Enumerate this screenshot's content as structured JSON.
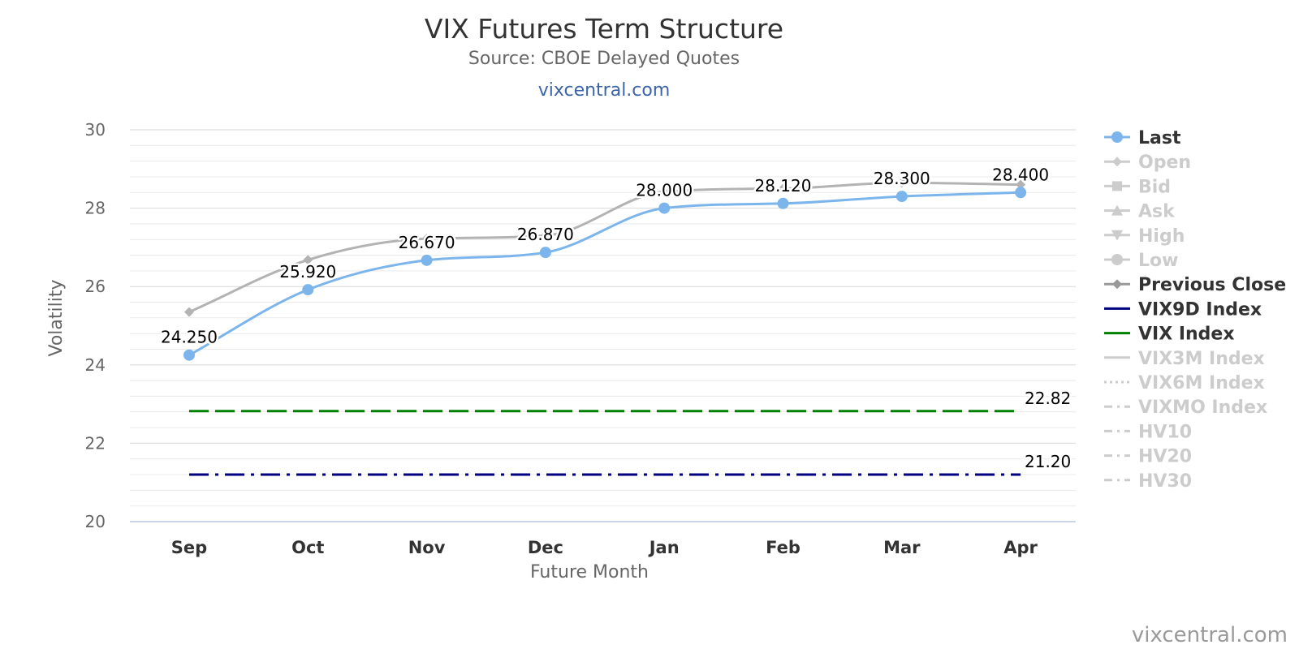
{
  "chart_data": {
    "type": "line",
    "title": "VIX Futures Term Structure",
    "subtitle": "Source: CBOE Delayed Quotes",
    "source_link": "vixcentral.com",
    "credit": "vixcentral.com",
    "xlabel": "Future Month",
    "ylabel": "Volatility",
    "categories": [
      "Sep",
      "Oct",
      "Nov",
      "Dec",
      "Jan",
      "Feb",
      "Mar",
      "Apr"
    ],
    "ylim": [
      20,
      30
    ],
    "yticks": [
      "20",
      "22",
      "24",
      "26",
      "28",
      "30"
    ],
    "grid": true,
    "legend_position": "right",
    "series": [
      {
        "name": "Last",
        "color": "#7cb5ec",
        "values": [
          24.25,
          25.92,
          26.67,
          26.87,
          28.0,
          28.12,
          28.3,
          28.4
        ],
        "data_labels": [
          "24.250",
          "25.920",
          "26.670",
          "26.870",
          "28.000",
          "28.120",
          "28.300",
          "28.400"
        ]
      },
      {
        "name": "Previous Close",
        "color": "#b3b3b3",
        "values": [
          25.35,
          26.68,
          27.22,
          27.3,
          28.42,
          28.5,
          28.65,
          28.6
        ]
      },
      {
        "name": "VIX Index",
        "color": "#008000",
        "values": [
          22.82,
          22.82,
          22.82,
          22.82,
          22.82,
          22.82,
          22.82,
          22.82
        ],
        "end_label": "22.82"
      },
      {
        "name": "VIX9D Index",
        "color": "#000080",
        "values": [
          21.2,
          21.2,
          21.2,
          21.2,
          21.2,
          21.2,
          21.2,
          21.2
        ],
        "end_label": "21.20"
      }
    ]
  },
  "legend": [
    {
      "label": "Last",
      "active": true,
      "color": "#7cb5ec",
      "icon": "circle-line"
    },
    {
      "label": "Open",
      "active": false,
      "color": "#cccccc",
      "icon": "diamond-line"
    },
    {
      "label": "Bid",
      "active": false,
      "color": "#cccccc",
      "icon": "square-line"
    },
    {
      "label": "Ask",
      "active": false,
      "color": "#cccccc",
      "icon": "triangle-line"
    },
    {
      "label": "High",
      "active": false,
      "color": "#cccccc",
      "icon": "triangle-down-line"
    },
    {
      "label": "Low",
      "active": false,
      "color": "#cccccc",
      "icon": "circle-line"
    },
    {
      "label": "Previous Close",
      "active": true,
      "color": "#999999",
      "icon": "diamond-line"
    },
    {
      "label": "VIX9D Index",
      "active": true,
      "color": "#000080",
      "icon": "line"
    },
    {
      "label": "VIX Index",
      "active": true,
      "color": "#008000",
      "icon": "line"
    },
    {
      "label": "VIX3M Index",
      "active": false,
      "color": "#cccccc",
      "icon": "line"
    },
    {
      "label": "VIX6M Index",
      "active": false,
      "color": "#cccccc",
      "icon": "dotted-line"
    },
    {
      "label": "VIXMO Index",
      "active": false,
      "color": "#cccccc",
      "icon": "dash-dot-line"
    },
    {
      "label": "HV10",
      "active": false,
      "color": "#cccccc",
      "icon": "dash-dot-line"
    },
    {
      "label": "HV20",
      "active": false,
      "color": "#cccccc",
      "icon": "dash-dot-line"
    },
    {
      "label": "HV30",
      "active": false,
      "color": "#cccccc",
      "icon": "dash-dot-line"
    }
  ]
}
